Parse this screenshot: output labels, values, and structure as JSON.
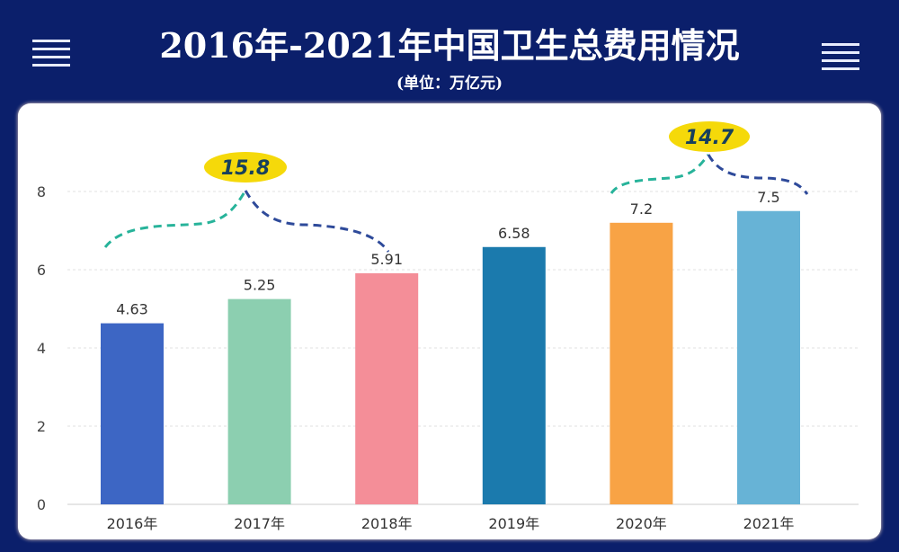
{
  "header": {
    "title": "2016年-2021年中国卫生总费用情况",
    "unit": "(单位：万亿元)"
  },
  "chart_data": {
    "type": "bar",
    "title": "2016年-2021年中国卫生总费用情况",
    "subtitle": "(单位：万亿元)",
    "categories": [
      "2016年",
      "2017年",
      "2018年",
      "2019年",
      "2020年",
      "2021年"
    ],
    "values": [
      4.63,
      5.25,
      5.91,
      6.58,
      7.2,
      7.5
    ],
    "value_labels": [
      "4.63",
      "5.25",
      "5.91",
      "6.58",
      "7.2",
      "7.5"
    ],
    "colors": [
      "#3d66c4",
      "#8ccfb0",
      "#f48e98",
      "#1b7aad",
      "#f8a345",
      "#67b3d6"
    ],
    "ylim": [
      0,
      8
    ],
    "yticks": [
      0,
      2,
      4,
      6,
      8
    ],
    "ytick_labels": [
      "0",
      "2",
      "4",
      "6",
      "8"
    ],
    "grid": true,
    "annotations": [
      {
        "text": "15.8",
        "span": [
          "2016年",
          "2018年"
        ]
      },
      {
        "text": "14.7",
        "span": [
          "2020年",
          "2021年"
        ]
      }
    ],
    "annotation_color": "#f5d90a"
  }
}
